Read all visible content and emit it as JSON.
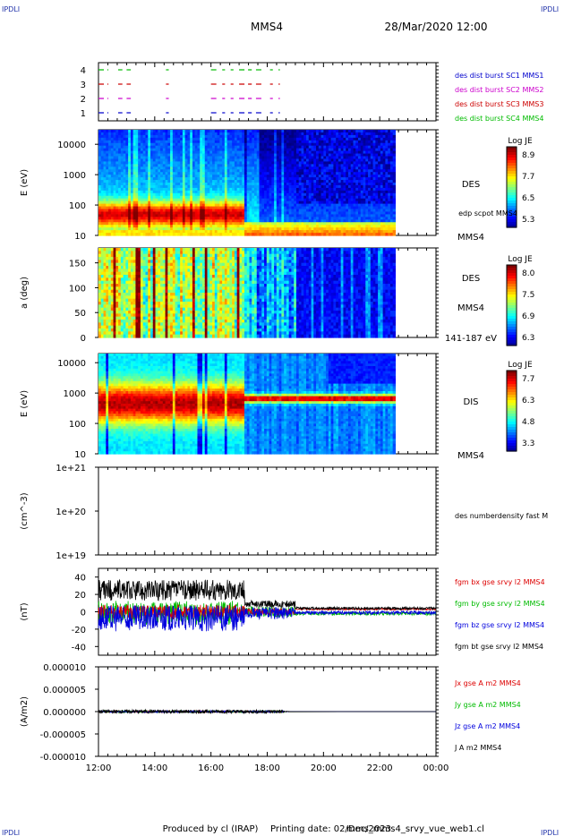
{
  "header": {
    "corner_label": "IPDLI",
    "spacecraft": "MMS4",
    "datetime": "28/Mar/2020 12:00"
  },
  "footer": {
    "produced_by": "Produced by cl (IRAP)",
    "printing_date": "Printing date: 02/Dec/2023",
    "script_name": "mms_mms4_srvy_vue_web1.cl"
  },
  "time_axis": {
    "ticks": [
      "12:00",
      "14:00",
      "16:00",
      "18:00",
      "20:00",
      "22:00",
      "00:00"
    ],
    "start_hour": 12,
    "end_hour": 24
  },
  "chart_data": [
    {
      "type": "scatter",
      "id": "burst",
      "ylabel": "",
      "yticks": [
        "1",
        "2",
        "3",
        "4"
      ],
      "legend": [
        {
          "text": "des dist burst SC1 MMS1",
          "color": "#0000cc",
          "level": 1
        },
        {
          "text": "des dist burst SC2 MMS2",
          "color": "#cc00cc",
          "level": 2
        },
        {
          "text": "des dist burst SC3 MMS3",
          "color": "#cc0000",
          "level": 3
        },
        {
          "text": "des dist burst SC4 MMS4",
          "color": "#00bb00",
          "level": 4
        }
      ],
      "segments_hours": [
        [
          12.0,
          12.35
        ],
        [
          12.7,
          12.85
        ],
        [
          13.0,
          13.15
        ],
        [
          14.4,
          14.5
        ],
        [
          16.0,
          16.2
        ],
        [
          16.4,
          16.5
        ],
        [
          16.7,
          16.8
        ],
        [
          17.0,
          17.45
        ],
        [
          17.6,
          17.9
        ],
        [
          18.1,
          18.2
        ],
        [
          18.4,
          18.45
        ]
      ]
    },
    {
      "type": "heatmap",
      "id": "des-energy",
      "ylabel": "E (eV)",
      "yscale": "log",
      "ylim": [
        10,
        30000
      ],
      "yticks": [
        "10",
        "100",
        "1000",
        "10000"
      ],
      "instrument": "DES",
      "probe": "MMS4",
      "overlay_label": "edp scpot MMS4",
      "colorbar": {
        "title": "Log JE",
        "ticks": [
          "8.9",
          "7.7",
          "6.5",
          "5.3"
        ]
      },
      "data_end_hour": 22.55
    },
    {
      "type": "heatmap",
      "id": "des-pitch",
      "ylabel": "a (deg)",
      "ylim": [
        0,
        180
      ],
      "yticks": [
        "0",
        "50",
        "100",
        "150"
      ],
      "instrument": "DES",
      "probe": "MMS4",
      "energy_range": "141-187 eV",
      "colorbar": {
        "title": "Log JE",
        "ticks": [
          "8.0",
          "7.5",
          "6.9",
          "6.3"
        ]
      },
      "data_end_hour": 22.55
    },
    {
      "type": "heatmap",
      "id": "dis-energy",
      "ylabel": "E (eV)",
      "yscale": "log",
      "ylim": [
        10,
        20000
      ],
      "yticks": [
        "10",
        "100",
        "1000",
        "10000"
      ],
      "instrument": "DIS",
      "probe": "MMS4",
      "colorbar": {
        "title": "Log JE",
        "ticks": [
          "7.7",
          "6.3",
          "4.8",
          "3.3"
        ]
      },
      "data_end_hour": 22.55
    },
    {
      "type": "line",
      "id": "density",
      "ylabel": "(cm^-3)",
      "yscale": "log",
      "yticks": [
        "1e+19",
        "1e+20",
        "1e+21"
      ],
      "legend": [
        {
          "text": "des numberdensity fast M",
          "color": "#000000"
        }
      ]
    },
    {
      "type": "line",
      "id": "fgm",
      "ylabel": "(nT)",
      "ylim": [
        -50,
        50
      ],
      "yticks": [
        "-40",
        "-20",
        "0",
        "20",
        "40"
      ],
      "legend": [
        {
          "text": "fgm bx gse srvy l2 MMS4",
          "color": "#dd0000"
        },
        {
          "text": "fgm by gse srvy l2 MMS4",
          "color": "#00bb00"
        },
        {
          "text": "fgm bz gse srvy l2 MMS4",
          "color": "#0000dd"
        },
        {
          "text": "fgm bt gse srvy l2 MMS4",
          "color": "#000000"
        }
      ]
    },
    {
      "type": "line",
      "id": "current",
      "ylabel": "(A/m2)",
      "ylim": [
        -1e-05,
        1e-05
      ],
      "yticks": [
        "0.000010",
        "0.000005",
        "0.000000",
        "-0.000005",
        "-0.000010"
      ],
      "legend": [
        {
          "text": "Jx gse A m2 MMS4",
          "color": "#dd0000"
        },
        {
          "text": "Jy gse A m2 MMS4",
          "color": "#00bb00"
        },
        {
          "text": "Jz gse A m2 MMS4",
          "color": "#0000dd"
        },
        {
          "text": "J A m2 MMS4",
          "color": "#000000"
        }
      ]
    }
  ]
}
